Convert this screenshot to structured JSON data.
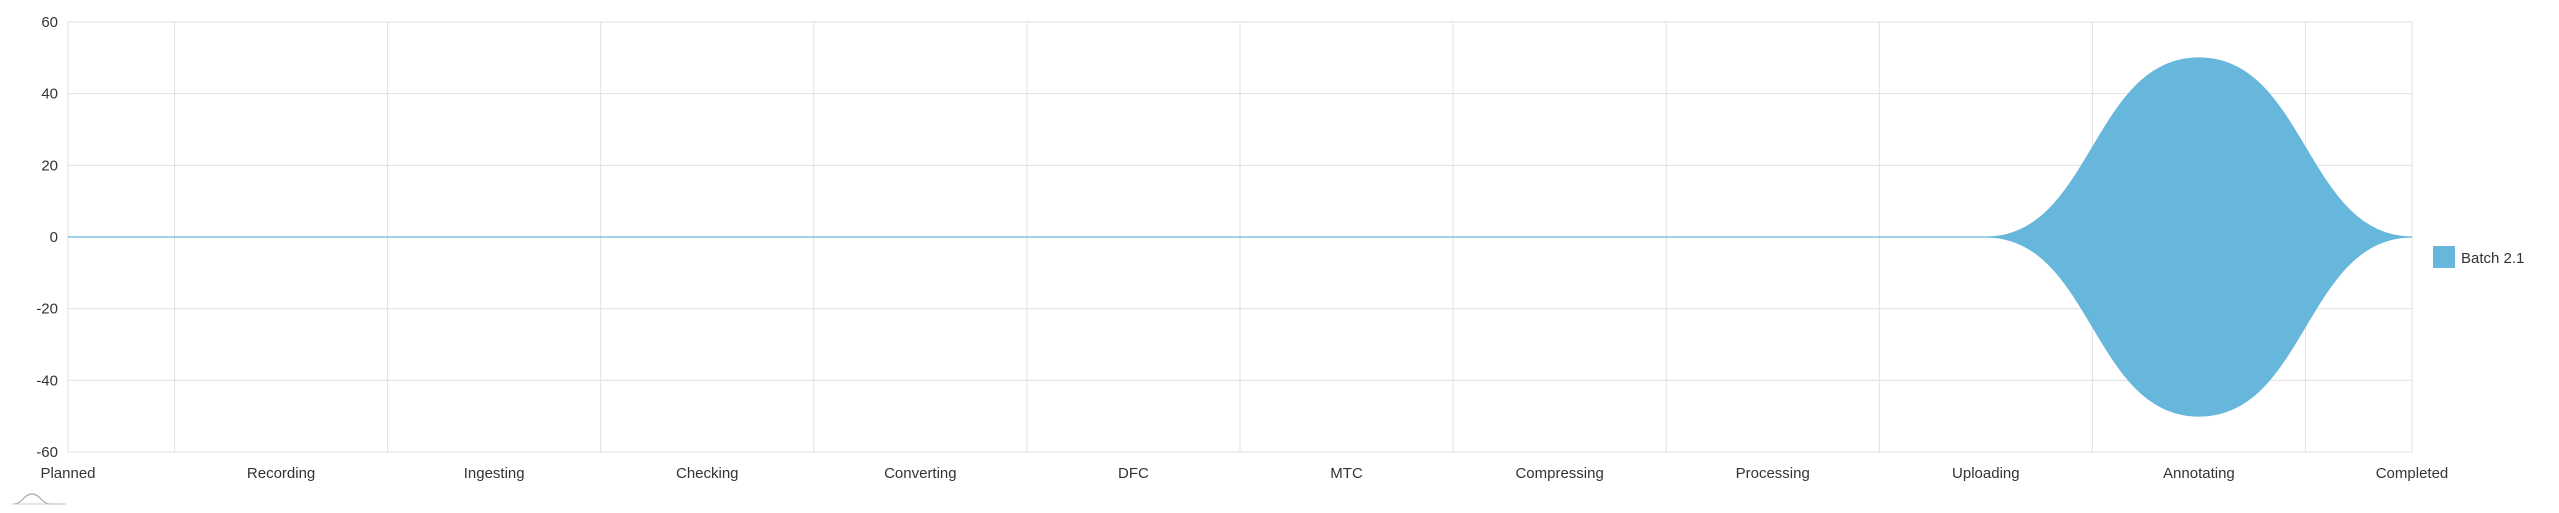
{
  "chart_data": {
    "type": "area",
    "subtype": "streamgraph-silhouette",
    "categories": [
      "Planned",
      "Recording",
      "Ingesting",
      "Checking",
      "Converting",
      "DFC",
      "MTC",
      "Compressing",
      "Processing",
      "Uploading",
      "Annotating",
      "Completed"
    ],
    "series": [
      {
        "name": "Batch 2.1",
        "values": [
          0,
          0,
          0,
          0,
          0,
          0,
          0,
          0,
          0,
          0,
          100,
          0
        ],
        "color": "#67b7dc"
      }
    ],
    "yticks": [
      "60",
      "40",
      "20",
      "0",
      "-20",
      "-40",
      "-60"
    ],
    "ylim": [
      -60,
      60
    ],
    "grid": true,
    "legend": "right",
    "colors": {
      "grid": "#e0e0e0",
      "axis_text": "#333333",
      "baseline": "#67b7dc"
    }
  }
}
